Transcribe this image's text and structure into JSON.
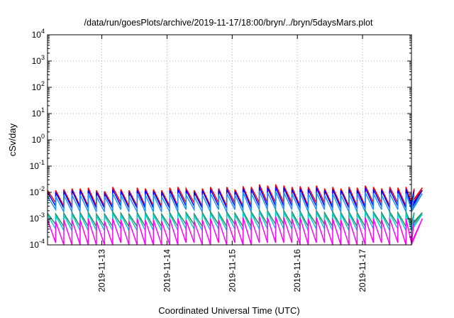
{
  "chart_data": {
    "type": "line",
    "title": "/data/run/goesPlots/archive/2019-11-17/18:00/bryn/../bryn/5daysMars.plot",
    "xlabel": "Coordinated Universal Time (UTC)",
    "ylabel": "cSv/day",
    "y_scale": "log",
    "ylim": [
      0.0001,
      10000
    ],
    "xlim": [
      "2019-11-12T04:00",
      "2019-11-17T18:00"
    ],
    "grid": true,
    "y_ticks": [
      {
        "base": "10",
        "exp": "-4"
      },
      {
        "base": "10",
        "exp": "-3"
      },
      {
        "base": "10",
        "exp": "-2"
      },
      {
        "base": "10",
        "exp": "-1"
      },
      {
        "base": "10",
        "exp": "0"
      },
      {
        "base": "10",
        "exp": "1"
      },
      {
        "base": "10",
        "exp": "2"
      },
      {
        "base": "10",
        "exp": "3"
      },
      {
        "base": "10",
        "exp": "4"
      }
    ],
    "x_ticks": [
      "2019-11-13",
      "2019-11-14",
      "2019-11-15",
      "2019-11-16",
      "2019-11-17"
    ],
    "sawtooth_period_hours": 3,
    "series": [
      {
        "color": "#ff0000",
        "peaks": [
          0.012,
          0.012,
          0.013,
          0.014,
          0.014,
          0.015,
          0.012,
          0.011,
          0.016,
          0.013,
          0.012,
          0.015,
          0.014,
          0.013,
          0.012,
          0.015,
          0.016,
          0.014,
          0.012,
          0.014,
          0.016,
          0.014,
          0.016,
          0.013,
          0.017,
          0.016,
          0.02,
          0.018,
          0.02,
          0.018,
          0.016,
          0.017,
          0.016,
          0.018,
          0.014,
          0.016,
          0.014,
          0.016,
          0.015,
          0.018,
          0.016,
          0.014,
          0.016,
          0.015,
          0.016,
          0.014,
          0.015
        ],
        "troughs": [
          0.004,
          0.003,
          0.003,
          0.003,
          0.003,
          0.003,
          0.003,
          0.003,
          0.004,
          0.003,
          0.003,
          0.003,
          0.003,
          0.003,
          0.003,
          0.003,
          0.004,
          0.004,
          0.003,
          0.003,
          0.004,
          0.003,
          0.004,
          0.003,
          0.003,
          0.004,
          0.004,
          0.004,
          0.004,
          0.004,
          0.003,
          0.003,
          0.004,
          0.004,
          0.003,
          0.003,
          0.003,
          0.003,
          0.003,
          0.004,
          0.004,
          0.003,
          0.004,
          0.003,
          0.004,
          0.003,
          0.004
        ]
      },
      {
        "color": "#0000ff",
        "peaks": [
          0.01,
          0.01,
          0.011,
          0.012,
          0.012,
          0.012,
          0.01,
          0.009,
          0.013,
          0.011,
          0.01,
          0.012,
          0.012,
          0.011,
          0.01,
          0.012,
          0.013,
          0.012,
          0.01,
          0.012,
          0.013,
          0.012,
          0.013,
          0.011,
          0.014,
          0.013,
          0.016,
          0.015,
          0.016,
          0.015,
          0.013,
          0.014,
          0.013,
          0.015,
          0.012,
          0.013,
          0.012,
          0.013,
          0.012,
          0.015,
          0.013,
          0.012,
          0.013,
          0.012,
          0.013,
          0.012,
          0.012
        ],
        "troughs": [
          0.003,
          0.0025,
          0.0025,
          0.0025,
          0.0025,
          0.0025,
          0.0025,
          0.0025,
          0.003,
          0.0025,
          0.0025,
          0.0025,
          0.0025,
          0.0025,
          0.0025,
          0.0025,
          0.003,
          0.003,
          0.0025,
          0.0025,
          0.003,
          0.0025,
          0.003,
          0.0025,
          0.0025,
          0.003,
          0.003,
          0.003,
          0.003,
          0.003,
          0.0025,
          0.0025,
          0.003,
          0.003,
          0.0025,
          0.0025,
          0.0025,
          0.0025,
          0.0025,
          0.003,
          0.003,
          0.0025,
          0.003,
          0.0025,
          0.003,
          0.0025,
          0.003
        ]
      },
      {
        "color": "#1e90ff",
        "peaks": [
          0.007,
          0.007,
          0.008,
          0.008,
          0.008,
          0.009,
          0.007,
          0.007,
          0.009,
          0.008,
          0.007,
          0.009,
          0.008,
          0.008,
          0.007,
          0.009,
          0.009,
          0.008,
          0.007,
          0.008,
          0.009,
          0.008,
          0.009,
          0.008,
          0.01,
          0.009,
          0.011,
          0.01,
          0.011,
          0.01,
          0.009,
          0.01,
          0.009,
          0.01,
          0.008,
          0.009,
          0.008,
          0.009,
          0.009,
          0.01,
          0.009,
          0.008,
          0.009,
          0.009,
          0.009,
          0.008,
          0.009
        ],
        "troughs": [
          0.0022,
          0.0018,
          0.0018,
          0.0018,
          0.0018,
          0.0018,
          0.0018,
          0.0018,
          0.0022,
          0.0018,
          0.0018,
          0.0018,
          0.0018,
          0.0018,
          0.0018,
          0.0018,
          0.0022,
          0.0022,
          0.0018,
          0.0018,
          0.0022,
          0.0018,
          0.0022,
          0.0018,
          0.0018,
          0.0022,
          0.0022,
          0.0022,
          0.0022,
          0.0022,
          0.0018,
          0.0018,
          0.0022,
          0.0022,
          0.0018,
          0.0018,
          0.0018,
          0.0018,
          0.0018,
          0.0022,
          0.0022,
          0.0018,
          0.0022,
          0.0018,
          0.0022,
          0.0018,
          0.0022
        ]
      },
      {
        "color": "#2e8b57",
        "peaks": [
          0.0016,
          0.0015,
          0.0016,
          0.0017,
          0.0017,
          0.0017,
          0.0015,
          0.0015,
          0.0018,
          0.0016,
          0.0015,
          0.0017,
          0.0017,
          0.0016,
          0.0015,
          0.0017,
          0.0018,
          0.0017,
          0.0015,
          0.0017,
          0.0018,
          0.0017,
          0.0018,
          0.0016,
          0.0019,
          0.0018,
          0.0021,
          0.002,
          0.0021,
          0.002,
          0.0018,
          0.0019,
          0.0018,
          0.002,
          0.0017,
          0.0018,
          0.0017,
          0.0018,
          0.0017,
          0.002,
          0.0018,
          0.0017,
          0.0018,
          0.0017,
          0.0018,
          0.0017,
          0.0017
        ],
        "troughs": [
          0.0006,
          0.0005,
          0.0005,
          0.0005,
          0.0005,
          0.0005,
          0.0005,
          0.0005,
          0.0006,
          0.0005,
          0.0005,
          0.0005,
          0.0005,
          0.0005,
          0.0005,
          0.0005,
          0.0006,
          0.0006,
          0.0005,
          0.0005,
          0.0006,
          0.0005,
          0.0006,
          0.0005,
          0.0005,
          0.0006,
          0.0006,
          0.0006,
          0.0006,
          0.0006,
          0.0005,
          0.0005,
          0.0006,
          0.0006,
          0.0005,
          0.0005,
          0.0005,
          0.0005,
          0.0005,
          0.0006,
          0.0006,
          0.0005,
          0.0006,
          0.0005,
          0.0006,
          0.0005,
          0.0006
        ]
      },
      {
        "color": "#00ced1",
        "peaks": [
          0.0014,
          0.0013,
          0.0014,
          0.0015,
          0.0015,
          0.0015,
          0.0013,
          0.0013,
          0.0016,
          0.0014,
          0.0013,
          0.0015,
          0.0015,
          0.0014,
          0.0013,
          0.0015,
          0.0016,
          0.0015,
          0.0013,
          0.0015,
          0.0016,
          0.0015,
          0.0016,
          0.0014,
          0.0017,
          0.0016,
          0.0019,
          0.0018,
          0.0019,
          0.0018,
          0.0016,
          0.0017,
          0.0016,
          0.0018,
          0.0015,
          0.0016,
          0.0015,
          0.0016,
          0.0015,
          0.0018,
          0.0016,
          0.0015,
          0.0016,
          0.0015,
          0.0016,
          0.0015,
          0.0015
        ],
        "troughs": [
          0.0004,
          0.00035,
          0.00035,
          0.00035,
          0.00035,
          0.00035,
          0.00035,
          0.00035,
          0.0004,
          0.00035,
          0.00035,
          0.00035,
          0.00035,
          0.00035,
          0.00035,
          0.00035,
          0.0004,
          0.0004,
          0.00035,
          0.00035,
          0.0004,
          0.00035,
          0.0004,
          0.00035,
          0.00035,
          0.0004,
          0.0004,
          0.0004,
          0.0004,
          0.0004,
          0.00035,
          0.00035,
          0.0004,
          0.0004,
          0.00035,
          0.00035,
          0.00035,
          0.00035,
          0.00035,
          0.0004,
          0.0004,
          0.00035,
          0.0004,
          0.00035,
          0.0004,
          0.00035,
          0.0004
        ]
      },
      {
        "color": "#ff00ff",
        "peaks": [
          0.0009,
          0.0008,
          0.0009,
          0.0009,
          0.0009,
          0.001,
          0.0008,
          0.0008,
          0.001,
          0.0009,
          0.0008,
          0.001,
          0.0009,
          0.0009,
          0.0008,
          0.001,
          0.001,
          0.0009,
          0.0008,
          0.0009,
          0.001,
          0.0009,
          0.001,
          0.0009,
          0.0011,
          0.001,
          0.0012,
          0.0011,
          0.0012,
          0.0011,
          0.001,
          0.0011,
          0.001,
          0.0011,
          0.0009,
          0.001,
          0.0009,
          0.001,
          0.001,
          0.0011,
          0.001,
          0.0009,
          0.001,
          0.001,
          0.001,
          0.0009,
          0.001
        ],
        "troughs": [
          0.00012,
          0.0001,
          0.0001,
          0.0001,
          0.0001,
          0.0001,
          0.0001,
          0.0001,
          0.00012,
          0.0001,
          0.0001,
          0.0001,
          0.0001,
          0.0001,
          0.0001,
          0.0001,
          0.00012,
          0.00012,
          0.0001,
          0.0001,
          0.00012,
          0.0001,
          0.00012,
          0.0001,
          0.0001,
          0.00012,
          0.00012,
          0.00012,
          0.00012,
          0.00012,
          0.0001,
          0.0001,
          0.00012,
          0.00012,
          0.0001,
          0.0001,
          0.0001,
          0.0001,
          0.0001,
          0.00012,
          0.00012,
          0.0001,
          0.00012,
          0.0001,
          0.00012,
          0.0001,
          0.00012
        ]
      }
    ]
  }
}
